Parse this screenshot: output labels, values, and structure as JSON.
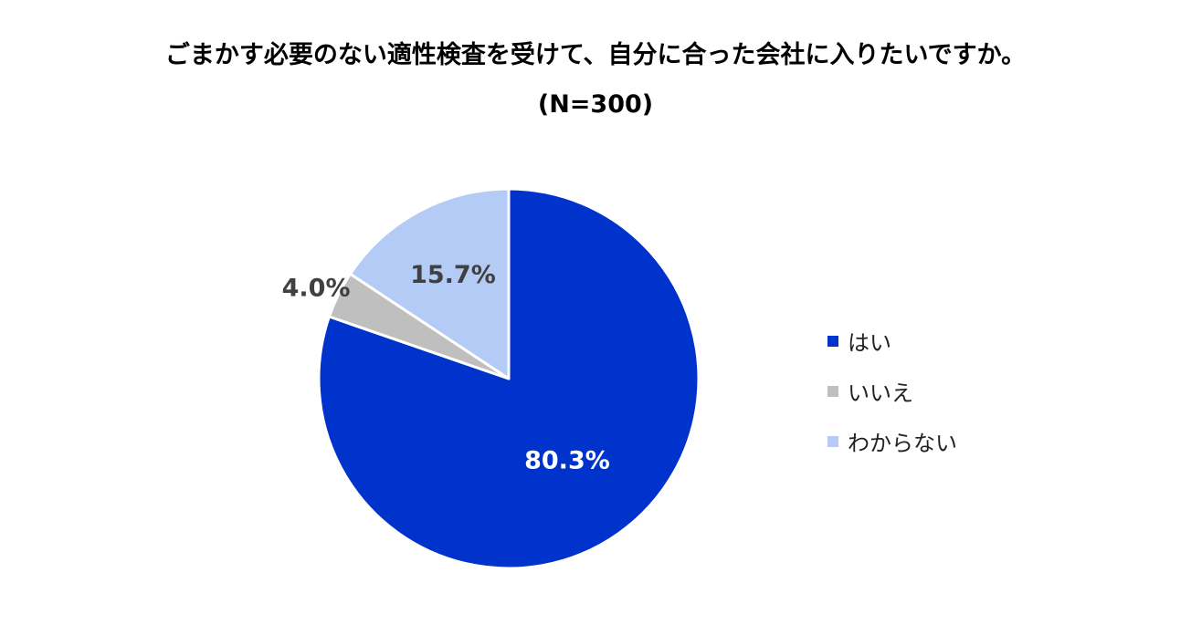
{
  "chart_data": {
    "type": "pie",
    "title": "ごまかす必要のない適性検査を受けて、自分に合った会社に入りたいですか。",
    "subtitle": "(N=300)",
    "categories": [
      "はい",
      "いいえ",
      "わからない"
    ],
    "values": [
      80.3,
      4.0,
      15.7
    ],
    "value_labels": [
      "80.3%",
      "4.0%",
      "15.7%"
    ],
    "colors": [
      "#0033cc",
      "#bfbfbf",
      "#b4cbf5"
    ],
    "label_colors": [
      "#ffffff",
      "#404040",
      "#404040"
    ],
    "start_angle": "12 o'clock",
    "direction": "clockwise",
    "legend_position": "right"
  }
}
